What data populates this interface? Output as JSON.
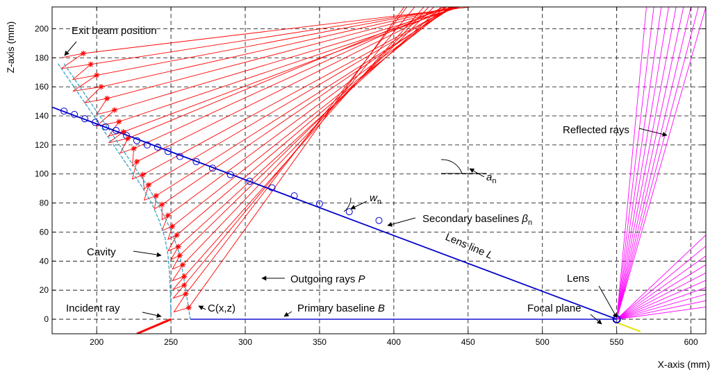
{
  "chart_data": {
    "type": "line",
    "title": "",
    "xlabel": "X-axis (mm)",
    "ylabel": "Z-axis (mm)",
    "xlim": [
      170,
      610
    ],
    "ylim": [
      -10,
      215
    ],
    "xticks": [
      200,
      250,
      300,
      350,
      400,
      450,
      500,
      550,
      600
    ],
    "yticks": [
      0,
      20,
      40,
      60,
      80,
      100,
      120,
      140,
      160,
      180,
      200
    ],
    "grid": "dashed",
    "colors": {
      "outgoing_rays": "#ff0000",
      "lens_line": "#0000cc",
      "cavity": "#40a8c8",
      "reflected_rays": "#ff00ff",
      "baseline": "#0000cc",
      "focal_plane": "#e8e000"
    },
    "series": [
      {
        "type": "line",
        "values": [
          [
            170,
            146
          ],
          [
            550,
            0
          ]
        ]
      },
      {
        "type": "scatter",
        "marker": "circle",
        "points": [
          [
            178,
            143.3
          ],
          [
            185,
            141
          ],
          [
            192,
            138
          ],
          [
            199,
            135.5
          ],
          [
            206,
            132.5
          ],
          [
            213,
            130
          ],
          [
            220,
            126.5
          ],
          [
            227,
            123
          ],
          [
            234,
            120
          ],
          [
            241,
            118.5
          ],
          [
            248,
            115.5
          ],
          [
            256,
            112
          ],
          [
            267,
            108.5
          ],
          [
            278,
            104
          ],
          [
            290,
            99.5
          ],
          [
            303,
            95
          ],
          [
            318,
            90.5
          ],
          [
            333,
            85
          ],
          [
            350,
            79.5
          ],
          [
            370,
            74
          ],
          [
            390,
            68
          ]
        ]
      },
      {
        "type": "line",
        "values": [
          [
            174,
            176
          ],
          [
            182,
            164
          ],
          [
            190,
            152
          ],
          [
            198,
            140
          ],
          [
            206,
            128
          ],
          [
            214,
            116
          ],
          [
            222,
            104
          ],
          [
            230,
            92
          ],
          [
            237,
            80
          ],
          [
            242,
            68
          ],
          [
            246,
            56
          ],
          [
            248,
            44
          ],
          [
            249,
            32
          ],
          [
            249.5,
            20
          ],
          [
            250,
            0
          ]
        ]
      },
      {
        "type": "line",
        "values": [
          [
            178,
            176
          ],
          [
            186,
            164
          ],
          [
            194,
            152
          ],
          [
            202,
            140
          ],
          [
            210,
            128
          ],
          [
            218,
            116
          ],
          [
            226,
            104
          ],
          [
            234,
            92
          ],
          [
            241,
            80
          ],
          [
            247,
            68
          ],
          [
            252,
            56
          ],
          [
            256,
            44
          ],
          [
            258,
            32
          ],
          [
            260,
            20
          ],
          [
            263,
            0
          ]
        ]
      },
      {
        "type": "scatter",
        "marker": "star",
        "points": [
          [
            191,
            183
          ],
          [
            196,
            175.5
          ],
          [
            200,
            168
          ],
          [
            203,
            160
          ],
          [
            207,
            152
          ],
          [
            212,
            144
          ],
          [
            215,
            136
          ],
          [
            218,
            129
          ],
          [
            221,
            124.5
          ],
          [
            225,
            117.5
          ],
          [
            227,
            108.5
          ],
          [
            231,
            99.5
          ],
          [
            235,
            92.5
          ],
          [
            240,
            85
          ],
          [
            244,
            79
          ],
          [
            248,
            71.5
          ],
          [
            251,
            64
          ],
          [
            254,
            58
          ],
          [
            255,
            50
          ],
          [
            256,
            44
          ],
          [
            258,
            37.5
          ],
          [
            259,
            29.5
          ],
          [
            259,
            23.5
          ],
          [
            260,
            17.5
          ],
          [
            262,
            8
          ]
        ]
      },
      {
        "type": "line",
        "values": [
          [
            263,
            0
          ],
          [
            550,
            0
          ]
        ]
      },
      {
        "type": "line",
        "values": [
          [
            227,
            -10
          ],
          [
            250,
            0
          ]
        ]
      },
      {
        "type": "line",
        "values": [
          [
            548,
            -1.5
          ],
          [
            566,
            -8.5
          ]
        ]
      }
    ],
    "outgoing_ray_angles_deg": [
      7,
      9,
      11,
      13,
      15,
      17,
      19,
      21,
      23,
      25,
      27,
      29,
      31,
      33,
      35,
      37,
      39,
      41,
      43,
      45,
      47,
      49,
      51,
      53,
      55
    ],
    "reflected_ray_targets_x": [
      570,
      575,
      580,
      585,
      590,
      595,
      600,
      605,
      610
    ],
    "annotations": [
      {
        "text": "Exit beam position"
      },
      {
        "text": "Reflected rays"
      },
      {
        "text": "Cavity"
      },
      {
        "text": "Incident ray"
      },
      {
        "text": "Outgoing rays",
        "italic_suffix": "P"
      },
      {
        "text": "Secondary baselines",
        "symbol": "β",
        "sub": "n"
      },
      {
        "text": "Lens line",
        "italic_suffix": "L"
      },
      {
        "text": "Lens"
      },
      {
        "text": "Focal plane"
      },
      {
        "text": "Primary baseline",
        "italic_suffix": "B"
      },
      {
        "symbol": "a",
        "sub": "n"
      },
      {
        "symbol": "w",
        "sub": "n"
      },
      {
        "text": "C(x,z)"
      }
    ]
  }
}
